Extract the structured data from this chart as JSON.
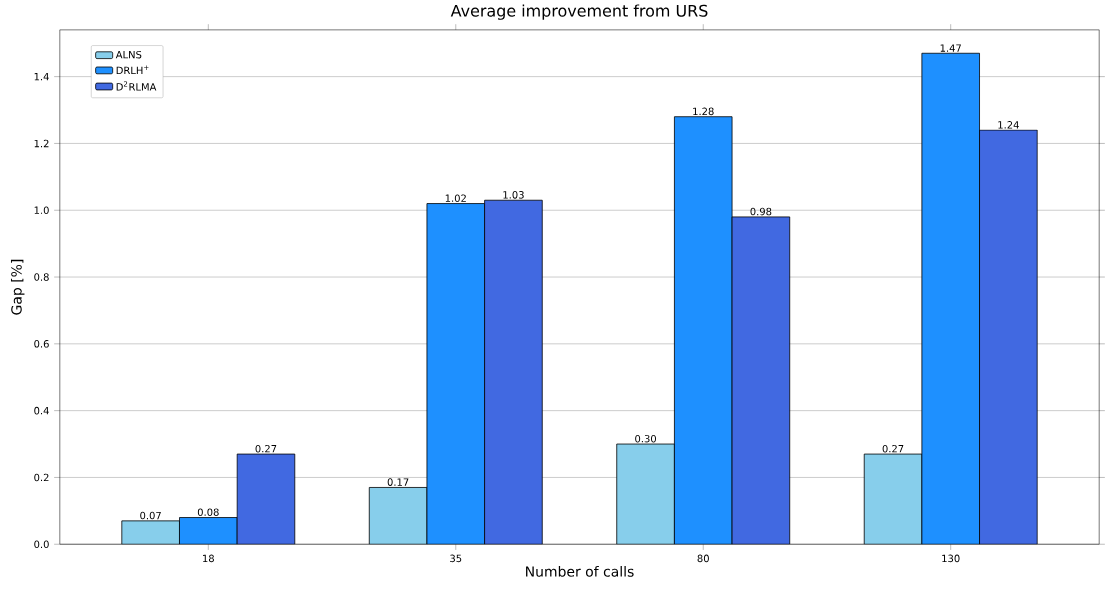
{
  "chart_data": {
    "type": "bar",
    "title": "Average improvement from URS",
    "xlabel": "Number of calls",
    "ylabel": "Gap [%]",
    "categories": [
      "18",
      "35",
      "80",
      "130"
    ],
    "series": [
      {
        "name": "ALNS",
        "color": "#87ceeb",
        "values": [
          0.07,
          0.17,
          0.3,
          0.27
        ],
        "value_labels": [
          "0.07",
          "0.17",
          "0.30",
          "0.27"
        ]
      },
      {
        "name": "DRLH$^{+}$",
        "color": "#1e90ff",
        "values": [
          0.08,
          1.02,
          1.28,
          1.47
        ],
        "value_labels": [
          "0.08",
          "1.02",
          "1.28",
          "1.47"
        ]
      },
      {
        "name": "D$^{2}$RLMA",
        "color": "#4169e1",
        "values": [
          0.27,
          1.03,
          0.98,
          1.24
        ],
        "value_labels": [
          "0.27",
          "1.03",
          "0.98",
          "1.24"
        ]
      }
    ],
    "ylim": [
      0,
      1.54
    ],
    "yticks": [
      {
        "value": 0,
        "label": "0.0"
      },
      0.2,
      0.4,
      0.6,
      0.8,
      {
        "value": 1.0,
        "label": "1.0"
      },
      1.2,
      1.4
    ],
    "grid": "y",
    "legend": "top left"
  }
}
